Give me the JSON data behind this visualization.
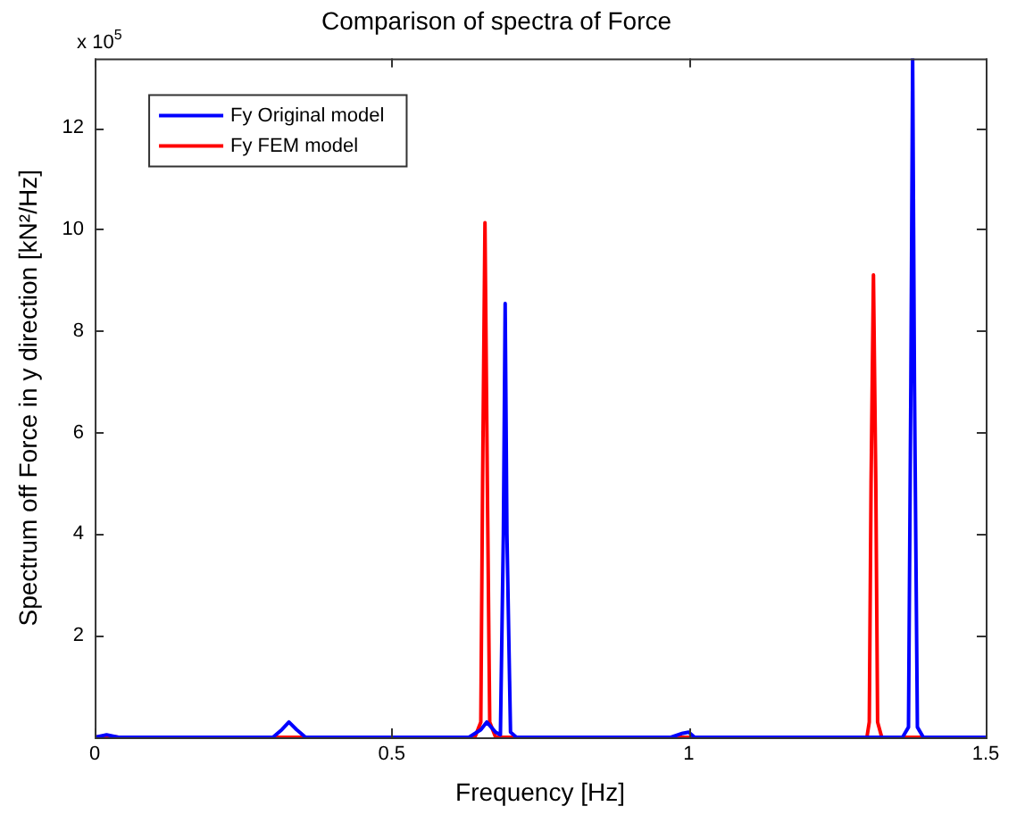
{
  "chart_data": {
    "type": "line",
    "title": "Comparison of spectra of Force",
    "xlabel": "Frequency [Hz]",
    "ylabel": "Spectrum off Force in y direction [kN²/Hz]",
    "annotations": [
      "x 10$^{5}$"
    ],
    "xlim": [
      0,
      1.5
    ],
    "xticks": [
      0,
      0.5,
      1,
      1.5
    ],
    "ylim": [
      0,
      13.36
    ],
    "yticks": [
      2,
      4,
      6,
      8,
      10,
      12
    ],
    "grid": false,
    "legend": "top left",
    "marker": "none",
    "line_style": "solid",
    "series": [
      {
        "name": "Fy Original model",
        "color": "#0000ff",
        "x": [
          0,
          0.02,
          0.04,
          0.3,
          0.315,
          0.327,
          0.34,
          0.355,
          0.63,
          0.65,
          0.66,
          0.675,
          0.683,
          0.688,
          0.691,
          0.694,
          0.7,
          0.71,
          0.97,
          0.99,
          1.0,
          1.01,
          1.36,
          1.37,
          1.374,
          1.377,
          1.38,
          1.385,
          1.395,
          1.5
        ],
        "values": [
          0,
          0.05,
          0,
          0,
          0.15,
          0.3,
          0.15,
          0,
          0,
          0.15,
          0.3,
          0.1,
          0.05,
          4,
          8.54,
          4,
          0.1,
          0,
          0,
          0.08,
          0.1,
          0,
          0,
          0.2,
          7,
          13.36,
          7,
          0.2,
          0,
          0
        ]
      },
      {
        "name": "Fy FEM model",
        "color": "#ff0000",
        "x": [
          0,
          0.02,
          0.04,
          0.64,
          0.65,
          0.653,
          0.657,
          0.661,
          0.665,
          0.675,
          1.3,
          1.304,
          1.307,
          1.311,
          1.315,
          1.318,
          1.325,
          1.5
        ],
        "values": [
          0,
          0.03,
          0,
          0,
          0.3,
          5,
          10.13,
          5,
          0.3,
          0,
          0,
          0.3,
          5,
          9.1,
          5,
          0.3,
          0,
          0
        ]
      }
    ]
  }
}
